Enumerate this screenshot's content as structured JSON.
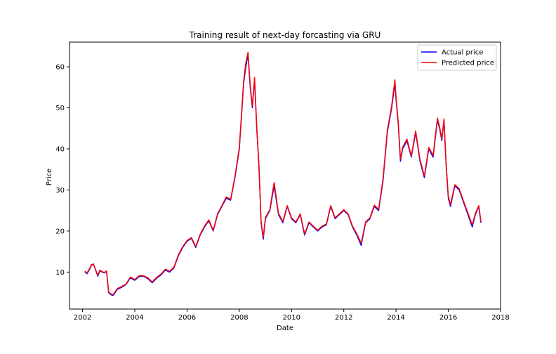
{
  "chart_data": {
    "type": "line",
    "title": "Training result of next-day forcasting via GRU",
    "xlabel": "Date",
    "ylabel": "Price",
    "xlim": [
      "2001-07-01",
      "2018-01-01"
    ],
    "ylim": [
      1,
      66
    ],
    "x_ticks": [
      "2002",
      "2004",
      "2006",
      "2008",
      "2010",
      "2012",
      "2014",
      "2016",
      "2018"
    ],
    "y_ticks": [
      10,
      20,
      30,
      40,
      50,
      60
    ],
    "grid": false,
    "legend_position": "top-right",
    "series": [
      {
        "name": "Actual price",
        "color": "#0000ff",
        "x": [
          "2002-02-01",
          "2002-03-01",
          "2002-04-01",
          "2002-05-01",
          "2002-06-01",
          "2002-07-01",
          "2002-08-01",
          "2002-09-01",
          "2002-10-01",
          "2002-11-01",
          "2002-12-01",
          "2003-01-01",
          "2003-02-01",
          "2003-03-01",
          "2003-05-01",
          "2003-07-01",
          "2003-09-01",
          "2003-11-01",
          "2004-01-01",
          "2004-03-01",
          "2004-05-01",
          "2004-07-01",
          "2004-09-01",
          "2004-11-01",
          "2005-01-01",
          "2005-03-01",
          "2005-05-01",
          "2005-07-01",
          "2005-09-01",
          "2005-11-01",
          "2006-01-01",
          "2006-03-01",
          "2006-05-01",
          "2006-07-01",
          "2006-09-01",
          "2006-11-01",
          "2007-01-01",
          "2007-03-01",
          "2007-05-01",
          "2007-07-01",
          "2007-09-01",
          "2007-11-01",
          "2007-12-15",
          "2008-01-01",
          "2008-02-01",
          "2008-03-01",
          "2008-04-01",
          "2008-05-01",
          "2008-06-01",
          "2008-07-01",
          "2008-08-01",
          "2008-09-01",
          "2008-10-01",
          "2008-11-01",
          "2008-12-01",
          "2009-01-01",
          "2009-03-01",
          "2009-05-01",
          "2009-07-01",
          "2009-09-01",
          "2009-11-01",
          "2010-01-01",
          "2010-03-01",
          "2010-05-01",
          "2010-07-01",
          "2010-09-01",
          "2010-11-01",
          "2011-01-01",
          "2011-03-01",
          "2011-05-01",
          "2011-07-01",
          "2011-09-01",
          "2011-11-01",
          "2012-01-01",
          "2012-03-01",
          "2012-05-01",
          "2012-07-01",
          "2012-09-01",
          "2012-11-01",
          "2013-01-01",
          "2013-03-01",
          "2013-05-01",
          "2013-07-01",
          "2013-09-01",
          "2013-11-01",
          "2013-12-15",
          "2014-01-01",
          "2014-02-01",
          "2014-03-01",
          "2014-04-01",
          "2014-06-01",
          "2014-08-01",
          "2014-10-01",
          "2014-12-01",
          "2015-02-01",
          "2015-04-01",
          "2015-06-01",
          "2015-08-01",
          "2015-09-01",
          "2015-10-01",
          "2015-11-01",
          "2015-12-01",
          "2016-01-01",
          "2016-02-01",
          "2016-04-01",
          "2016-06-01",
          "2016-08-01",
          "2016-10-01",
          "2016-12-01",
          "2017-01-15",
          "2017-03-01",
          "2017-04-01"
        ],
        "y": [
          10.1,
          9.6,
          10.4,
          11.6,
          12.0,
          10.5,
          9.0,
          10.3,
          10.0,
          9.8,
          10.2,
          5.0,
          4.5,
          4.3,
          5.8,
          6.3,
          7.0,
          8.6,
          8.0,
          8.9,
          9.0,
          8.4,
          7.4,
          8.5,
          9.3,
          10.5,
          10.0,
          11.0,
          14.0,
          16.0,
          17.5,
          18.2,
          16.0,
          19.0,
          21.0,
          22.5,
          20.0,
          24.0,
          26.0,
          28.0,
          27.5,
          33.0,
          38.0,
          40.0,
          48.0,
          56.0,
          60.0,
          63.0,
          55.0,
          50.0,
          57.0,
          45.0,
          36.0,
          22.0,
          18.0,
          23.0,
          25.0,
          31.0,
          24.0,
          22.0,
          26.0,
          23.0,
          22.0,
          24.0,
          19.0,
          22.0,
          21.0,
          20.0,
          21.0,
          21.5,
          26.0,
          23.0,
          24.0,
          25.0,
          24.0,
          21.0,
          19.0,
          16.5,
          22.0,
          23.0,
          26.0,
          25.0,
          32.0,
          44.0,
          50.0,
          56.0,
          52.0,
          46.0,
          37.0,
          40.0,
          42.0,
          38.0,
          44.0,
          37.0,
          33.0,
          40.0,
          38.0,
          47.0,
          45.0,
          42.0,
          47.0,
          36.0,
          28.0,
          26.0,
          31.0,
          30.0,
          27.0,
          24.0,
          21.0,
          24.0,
          26.0,
          22.0
        ]
      },
      {
        "name": "Predicted price",
        "color": "#ff0000",
        "x": [
          "2002-02-01",
          "2002-03-01",
          "2002-04-01",
          "2002-05-01",
          "2002-06-01",
          "2002-07-01",
          "2002-08-01",
          "2002-09-01",
          "2002-10-01",
          "2002-11-01",
          "2002-12-01",
          "2003-01-01",
          "2003-02-01",
          "2003-03-01",
          "2003-05-01",
          "2003-07-01",
          "2003-09-01",
          "2003-11-01",
          "2004-01-01",
          "2004-03-01",
          "2004-05-01",
          "2004-07-01",
          "2004-09-01",
          "2004-11-01",
          "2005-01-01",
          "2005-03-01",
          "2005-05-01",
          "2005-07-01",
          "2005-09-01",
          "2005-11-01",
          "2006-01-01",
          "2006-03-01",
          "2006-05-01",
          "2006-07-01",
          "2006-09-01",
          "2006-11-01",
          "2007-01-01",
          "2007-03-01",
          "2007-05-01",
          "2007-07-01",
          "2007-09-01",
          "2007-11-01",
          "2007-12-15",
          "2008-01-01",
          "2008-02-01",
          "2008-03-01",
          "2008-04-01",
          "2008-05-01",
          "2008-06-01",
          "2008-07-01",
          "2008-08-01",
          "2008-09-01",
          "2008-10-01",
          "2008-11-01",
          "2008-12-01",
          "2009-01-01",
          "2009-03-01",
          "2009-05-01",
          "2009-07-01",
          "2009-09-01",
          "2009-11-01",
          "2010-01-01",
          "2010-03-01",
          "2010-05-01",
          "2010-07-01",
          "2010-09-01",
          "2010-11-01",
          "2011-01-01",
          "2011-03-01",
          "2011-05-01",
          "2011-07-01",
          "2011-09-01",
          "2011-11-01",
          "2012-01-01",
          "2012-03-01",
          "2012-05-01",
          "2012-07-01",
          "2012-09-01",
          "2012-11-01",
          "2013-01-01",
          "2013-03-01",
          "2013-05-01",
          "2013-07-01",
          "2013-09-01",
          "2013-11-01",
          "2013-12-15",
          "2014-01-01",
          "2014-02-01",
          "2014-03-01",
          "2014-04-01",
          "2014-06-01",
          "2014-08-01",
          "2014-10-01",
          "2014-12-01",
          "2015-02-01",
          "2015-04-01",
          "2015-06-01",
          "2015-08-01",
          "2015-09-01",
          "2015-10-01",
          "2015-11-01",
          "2015-12-01",
          "2016-01-01",
          "2016-02-01",
          "2016-04-01",
          "2016-06-01",
          "2016-08-01",
          "2016-10-01",
          "2016-12-01",
          "2017-01-15",
          "2017-03-01",
          "2017-04-01"
        ],
        "y": [
          10.2,
          9.8,
          10.6,
          11.8,
          11.9,
          10.6,
          9.2,
          10.5,
          10.1,
          9.9,
          10.3,
          5.2,
          4.7,
          4.5,
          6.0,
          6.5,
          7.1,
          8.8,
          8.2,
          9.1,
          9.1,
          8.6,
          7.6,
          8.7,
          9.5,
          10.7,
          10.2,
          11.2,
          14.2,
          16.2,
          17.7,
          18.4,
          16.2,
          19.2,
          21.2,
          22.7,
          20.2,
          24.2,
          26.2,
          28.3,
          27.7,
          33.3,
          38.4,
          40.4,
          48.5,
          56.6,
          61.0,
          63.5,
          55.5,
          50.5,
          57.4,
          45.4,
          36.3,
          22.3,
          18.5,
          23.3,
          25.2,
          31.8,
          24.3,
          22.3,
          26.2,
          23.2,
          22.2,
          24.2,
          19.3,
          22.2,
          21.2,
          20.2,
          21.2,
          21.7,
          26.2,
          23.2,
          24.2,
          25.2,
          24.2,
          21.2,
          19.3,
          17.0,
          22.2,
          23.2,
          26.3,
          25.3,
          32.5,
          44.5,
          50.5,
          56.8,
          52.5,
          46.5,
          37.5,
          40.4,
          42.4,
          38.3,
          44.4,
          37.4,
          33.4,
          40.4,
          38.4,
          47.5,
          45.4,
          42.4,
          47.3,
          36.4,
          28.5,
          26.4,
          31.3,
          30.3,
          27.3,
          24.4,
          21.5,
          24.3,
          26.2,
          22.3
        ]
      }
    ]
  }
}
